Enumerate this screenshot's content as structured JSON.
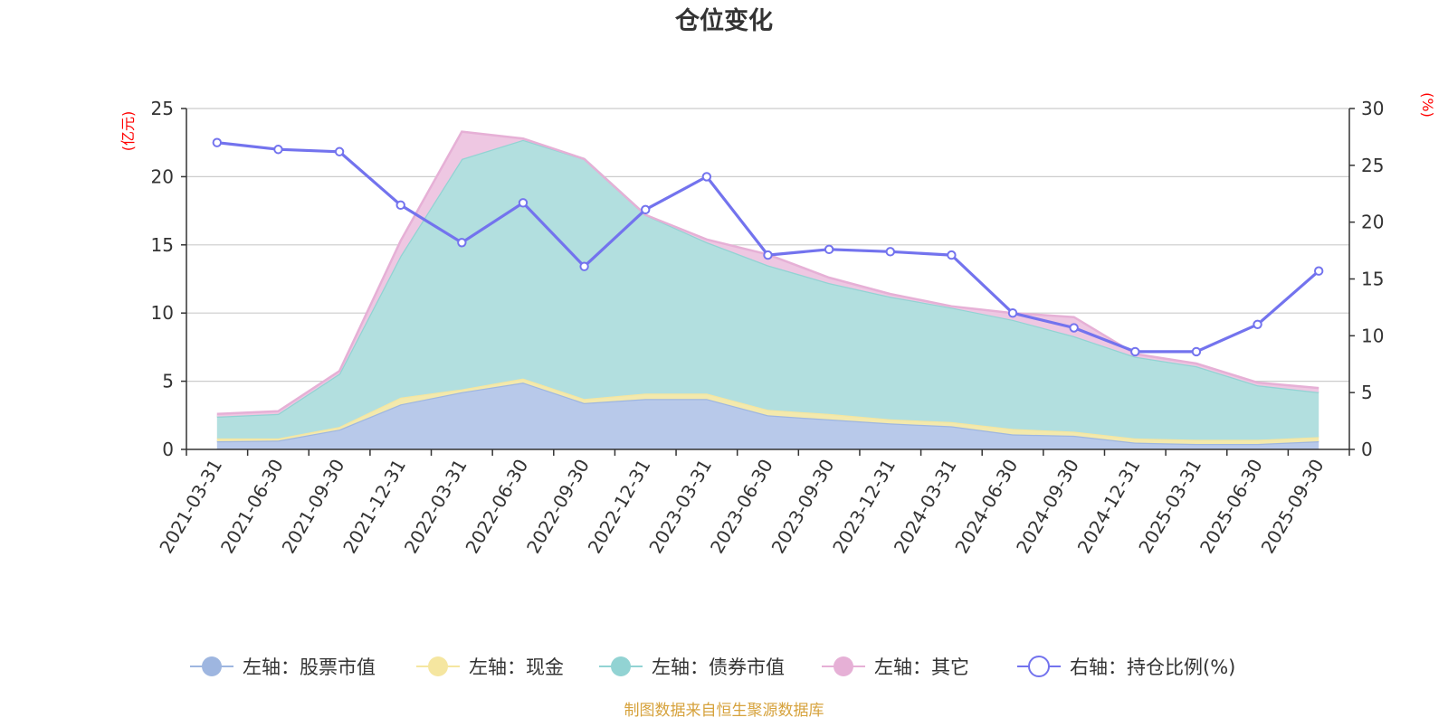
{
  "chart_data": {
    "type": "area",
    "title": "仓位变化",
    "left_unit": "(亿元)",
    "right_unit": "(%)",
    "categories": [
      "2021-03-31",
      "2021-06-30",
      "2021-09-30",
      "2021-12-31",
      "2022-03-31",
      "2022-06-30",
      "2022-09-30",
      "2022-12-31",
      "2023-03-31",
      "2023-06-30",
      "2023-09-30",
      "2023-12-31",
      "2024-03-31",
      "2024-06-30",
      "2024-09-30",
      "2024-12-31",
      "2025-03-31",
      "2025-06-30",
      "2025-09-30"
    ],
    "left_axis": {
      "min": 0,
      "max": 25,
      "ticks": [
        "0",
        "5",
        "10",
        "15",
        "20",
        "25"
      ]
    },
    "right_axis": {
      "min": 0,
      "max": 30,
      "ticks": [
        "0",
        "5",
        "10",
        "15",
        "20",
        "25",
        "30"
      ]
    },
    "stacked_series": [
      {
        "name": "左轴：股票市值",
        "color": "#9eb6e0",
        "fill": "#b8c9ea",
        "values": [
          0.6,
          0.65,
          1.45,
          3.3,
          4.2,
          4.9,
          3.4,
          3.7,
          3.7,
          2.5,
          2.2,
          1.9,
          1.7,
          1.1,
          1.0,
          0.5,
          0.4,
          0.4,
          0.6
        ]
      },
      {
        "name": "左轴：现金",
        "color": "#f5e6a0",
        "fill": "#f3e9ad",
        "values": [
          0.2,
          0.15,
          0.2,
          0.5,
          0.2,
          0.3,
          0.3,
          0.4,
          0.4,
          0.4,
          0.4,
          0.3,
          0.3,
          0.4,
          0.3,
          0.3,
          0.3,
          0.3,
          0.3
        ]
      },
      {
        "name": "左轴：债券市值",
        "color": "#92d3d3",
        "fill": "#b2dfdf",
        "values": [
          1.6,
          1.8,
          3.9,
          10.4,
          16.9,
          17.5,
          17.6,
          13.1,
          11.1,
          10.6,
          9.6,
          9.0,
          8.4,
          8.0,
          7.0,
          6.0,
          5.4,
          4.0,
          3.3
        ]
      },
      {
        "name": "左轴：其它",
        "color": "#e6b0d6",
        "fill": "#eec7e2",
        "values": [
          0.2,
          0.2,
          0.2,
          1.1,
          2.0,
          0.1,
          0.0,
          0.0,
          0.2,
          0.8,
          0.4,
          0.2,
          0.1,
          0.5,
          1.4,
          0.2,
          0.2,
          0.2,
          0.3
        ]
      }
    ],
    "line_series": {
      "name": "右轴：持仓比例(%)",
      "color": "#7373ee",
      "values": [
        27.0,
        26.4,
        26.2,
        21.5,
        18.2,
        21.7,
        16.1,
        21.1,
        24.0,
        17.1,
        17.6,
        17.4,
        17.1,
        12.0,
        10.7,
        8.6,
        8.6,
        11.0,
        15.7
      ]
    },
    "grid": true,
    "legend_position": "bottom"
  },
  "source_note": "制图数据来自恒生聚源数据库"
}
